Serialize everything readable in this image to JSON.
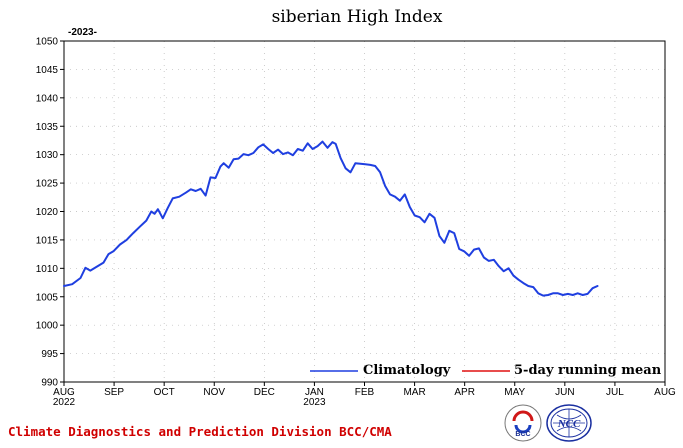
{
  "chart_data": {
    "type": "line",
    "title": "siberian High Index",
    "subtitle": "-2023-",
    "xlabel": "",
    "ylabel": "",
    "ylim": [
      990,
      1050
    ],
    "yticks": [
      990,
      995,
      1000,
      1005,
      1010,
      1015,
      1020,
      1025,
      1030,
      1035,
      1040,
      1045,
      1050
    ],
    "x_tick_labels": [
      {
        "label": "AUG",
        "sub": "2022"
      },
      {
        "label": "SEP",
        "sub": ""
      },
      {
        "label": "OCT",
        "sub": ""
      },
      {
        "label": "NOV",
        "sub": ""
      },
      {
        "label": "DEC",
        "sub": ""
      },
      {
        "label": "JAN",
        "sub": "2023"
      },
      {
        "label": "FEB",
        "sub": ""
      },
      {
        "label": "MAR",
        "sub": ""
      },
      {
        "label": "APR",
        "sub": ""
      },
      {
        "label": "MAY",
        "sub": ""
      },
      {
        "label": "JUN",
        "sub": ""
      },
      {
        "label": "JUL",
        "sub": ""
      },
      {
        "label": "AUG",
        "sub": ""
      }
    ],
    "grid": true,
    "legend_position": "bottom-right",
    "series": [
      {
        "name": "Climatology",
        "color": "#1f3fe0",
        "points": [
          [
            0,
            1006.9
          ],
          [
            5,
            1007.2
          ],
          [
            10,
            1008.3
          ],
          [
            13,
            1010.1
          ],
          [
            16,
            1009.6
          ],
          [
            20,
            1010.3
          ],
          [
            24,
            1011.0
          ],
          [
            27,
            1012.5
          ],
          [
            30,
            1013.0
          ],
          [
            34,
            1014.2
          ],
          [
            38,
            1015.0
          ],
          [
            42,
            1016.2
          ],
          [
            46,
            1017.3
          ],
          [
            50,
            1018.4
          ],
          [
            53,
            1020.0
          ],
          [
            55,
            1019.6
          ],
          [
            57,
            1020.4
          ],
          [
            60,
            1018.8
          ],
          [
            63,
            1020.6
          ],
          [
            66,
            1022.3
          ],
          [
            70,
            1022.6
          ],
          [
            74,
            1023.3
          ],
          [
            77,
            1023.9
          ],
          [
            80,
            1023.6
          ],
          [
            83,
            1024.0
          ],
          [
            86,
            1022.8
          ],
          [
            89,
            1026.0
          ],
          [
            92,
            1025.9
          ],
          [
            95,
            1027.9
          ],
          [
            97,
            1028.5
          ],
          [
            100,
            1027.7
          ],
          [
            103,
            1029.2
          ],
          [
            106,
            1029.3
          ],
          [
            109,
            1030.1
          ],
          [
            112,
            1029.9
          ],
          [
            115,
            1030.3
          ],
          [
            118,
            1031.3
          ],
          [
            121,
            1031.8
          ],
          [
            124,
            1031.0
          ],
          [
            127,
            1030.3
          ],
          [
            130,
            1030.9
          ],
          [
            133,
            1030.1
          ],
          [
            136,
            1030.4
          ],
          [
            139,
            1029.9
          ],
          [
            142,
            1031.0
          ],
          [
            145,
            1030.7
          ],
          [
            148,
            1032.0
          ],
          [
            151,
            1031.0
          ],
          [
            154,
            1031.5
          ],
          [
            157,
            1032.3
          ],
          [
            160,
            1031.2
          ],
          [
            163,
            1032.2
          ],
          [
            165,
            1031.9
          ],
          [
            168,
            1029.4
          ],
          [
            171,
            1027.6
          ],
          [
            174,
            1026.9
          ],
          [
            177,
            1028.5
          ],
          [
            180,
            1028.4
          ],
          [
            183,
            1028.3
          ],
          [
            186,
            1028.2
          ],
          [
            189,
            1028.0
          ],
          [
            192,
            1026.9
          ],
          [
            195,
            1024.5
          ],
          [
            198,
            1023.0
          ],
          [
            201,
            1022.6
          ],
          [
            204,
            1021.9
          ],
          [
            207,
            1023.0
          ],
          [
            210,
            1020.8
          ],
          [
            213,
            1019.3
          ],
          [
            216,
            1019.0
          ],
          [
            219,
            1018.1
          ],
          [
            222,
            1019.6
          ],
          [
            225,
            1018.9
          ],
          [
            228,
            1015.7
          ],
          [
            231,
            1014.5
          ],
          [
            234,
            1016.6
          ],
          [
            237,
            1016.2
          ],
          [
            240,
            1013.4
          ],
          [
            243,
            1013.0
          ],
          [
            246,
            1012.2
          ],
          [
            249,
            1013.3
          ],
          [
            252,
            1013.5
          ],
          [
            255,
            1011.9
          ],
          [
            258,
            1011.3
          ],
          [
            261,
            1011.5
          ],
          [
            264,
            1010.4
          ],
          [
            267,
            1009.5
          ],
          [
            270,
            1010.0
          ],
          [
            273,
            1008.7
          ],
          [
            276,
            1008.0
          ],
          [
            279,
            1007.4
          ],
          [
            282,
            1006.9
          ],
          [
            285,
            1006.7
          ],
          [
            288,
            1005.6
          ],
          [
            291,
            1005.2
          ],
          [
            294,
            1005.3
          ],
          [
            297,
            1005.6
          ],
          [
            300,
            1005.6
          ],
          [
            303,
            1005.3
          ],
          [
            306,
            1005.5
          ],
          [
            309,
            1005.3
          ],
          [
            312,
            1005.6
          ],
          [
            315,
            1005.3
          ],
          [
            318,
            1005.5
          ],
          [
            321,
            1006.5
          ],
          [
            324,
            1006.9
          ]
        ]
      },
      {
        "name": "5-day running mean",
        "color": "#e01010",
        "points": []
      }
    ]
  },
  "footer": {
    "text": "Climate Diagnostics and Prediction Division  BCC/CMA"
  },
  "logos": {
    "bcc_text": "BCC",
    "ncc_text": "NCC"
  }
}
